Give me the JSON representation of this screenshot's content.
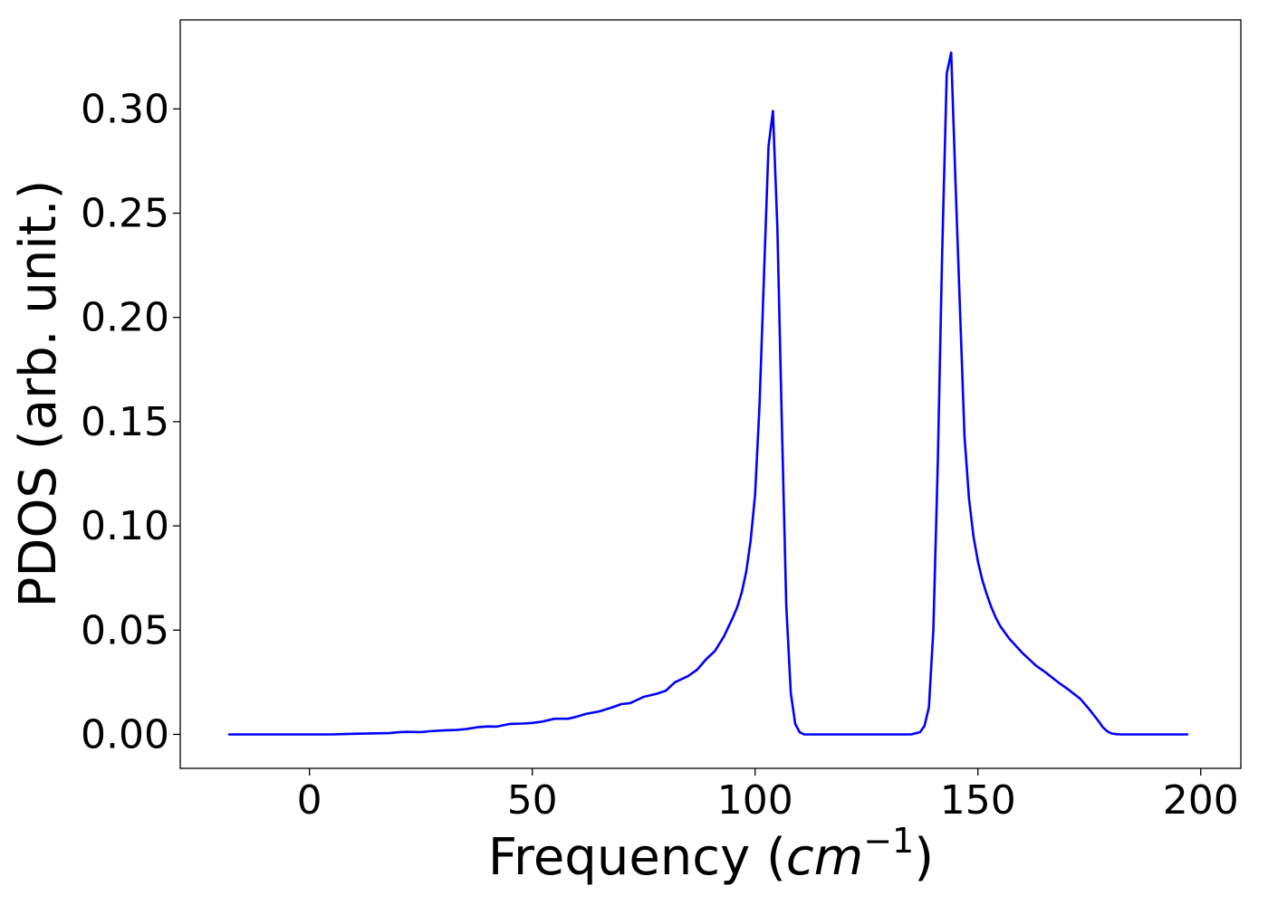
{
  "chart_data": {
    "type": "line",
    "title": "",
    "xlabel": {
      "prefix": "Frequency (",
      "unit": "cm",
      "exponent": "−1",
      "suffix": ")"
    },
    "ylabel": "PDOS (arb. unit.)",
    "xlim": [
      -29,
      209
    ],
    "ylim": [
      -0.0163,
      0.3427
    ],
    "xticks": [
      0,
      50,
      100,
      150,
      200
    ],
    "xtick_labels": [
      "0",
      "50",
      "100",
      "150",
      "200"
    ],
    "yticks": [
      0,
      0.05,
      0.1,
      0.15,
      0.2,
      0.25,
      0.3
    ],
    "ytick_labels": [
      "0.00",
      "0.05",
      "0.10",
      "0.15",
      "0.20",
      "0.25",
      "0.30"
    ],
    "grid": false,
    "legend": "none",
    "series": [
      {
        "color": "#0000ff",
        "x": [
          -18,
          0,
          5,
          10,
          15,
          18,
          20,
          22,
          25,
          27,
          30,
          33,
          35,
          38,
          40,
          42,
          45,
          48,
          50,
          52,
          55,
          58,
          60,
          62,
          65,
          68,
          70,
          72,
          75,
          78,
          80,
          82,
          85,
          87,
          89,
          91,
          93,
          95,
          96,
          97,
          98,
          99,
          100,
          101,
          102,
          103,
          104,
          105,
          106,
          107,
          108,
          109,
          110,
          111,
          112,
          113,
          115,
          120,
          125,
          130,
          135,
          137,
          138,
          139,
          140,
          141,
          142,
          143,
          144,
          145,
          146,
          147,
          148,
          149,
          150,
          151,
          152,
          153,
          154,
          155,
          157,
          160,
          163,
          165,
          168,
          170,
          173,
          175,
          177,
          178,
          179,
          180,
          181,
          182,
          185,
          190,
          197
        ],
        "y": [
          0,
          0,
          0,
          0.0003,
          0.0005,
          0.0006,
          0.001,
          0.0012,
          0.0011,
          0.0015,
          0.0019,
          0.0021,
          0.0025,
          0.0035,
          0.0038,
          0.0037,
          0.005,
          0.0052,
          0.0055,
          0.006,
          0.0075,
          0.0075,
          0.0085,
          0.0098,
          0.011,
          0.013,
          0.0145,
          0.015,
          0.018,
          0.0195,
          0.021,
          0.025,
          0.028,
          0.031,
          0.036,
          0.04,
          0.047,
          0.056,
          0.061,
          0.068,
          0.078,
          0.093,
          0.115,
          0.158,
          0.22,
          0.282,
          0.299,
          0.243,
          0.15,
          0.062,
          0.02,
          0.005,
          0.001,
          0,
          0,
          0,
          0,
          0,
          0,
          0,
          0,
          0.001,
          0.004,
          0.013,
          0.05,
          0.13,
          0.232,
          0.317,
          0.327,
          0.263,
          0.203,
          0.143,
          0.113,
          0.095,
          0.083,
          0.074,
          0.067,
          0.061,
          0.056,
          0.052,
          0.046,
          0.039,
          0.033,
          0.03,
          0.025,
          0.022,
          0.017,
          0.012,
          0.0065,
          0.0035,
          0.0015,
          0.0004,
          0.0001,
          0,
          0,
          0,
          0
        ]
      }
    ]
  }
}
